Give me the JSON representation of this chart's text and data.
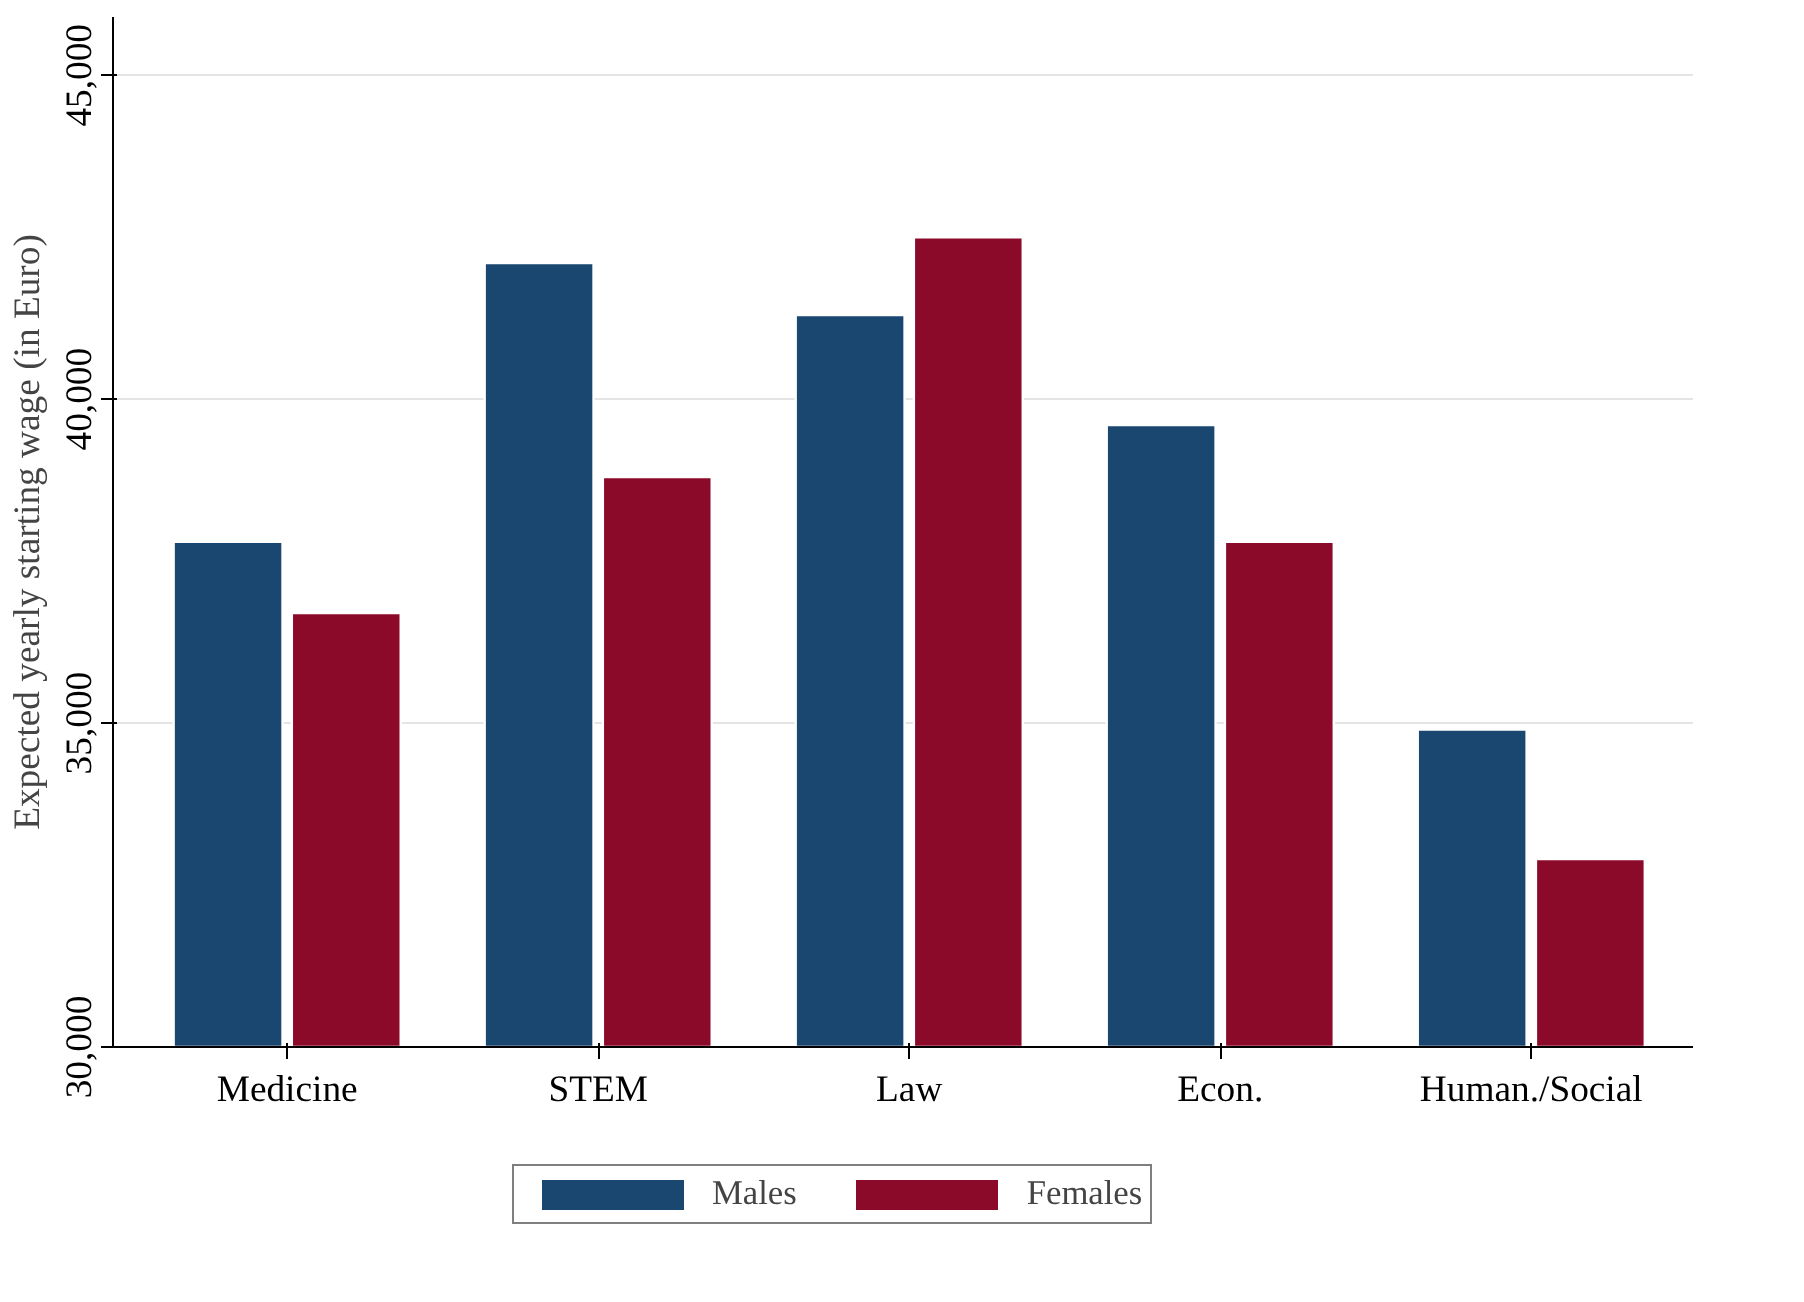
{
  "chart_data": {
    "type": "bar",
    "ylabel": "Expected yearly starting wage (in Euro)",
    "categories": [
      "Medicine",
      "STEM",
      "Law",
      "Econ.",
      "Human./Social"
    ],
    "series": [
      {
        "name": "Males",
        "color": "#1a476f",
        "values": [
          37800,
          42100,
          41300,
          39600,
          34900
        ]
      },
      {
        "name": "Females",
        "color": "#8b0a2a",
        "values": [
          36700,
          38800,
          42500,
          37800,
          32900
        ]
      }
    ],
    "ylim": [
      30000,
      45900
    ],
    "yticks": [
      {
        "value": 30000,
        "label": "30,000"
      },
      {
        "value": 35000,
        "label": "35,000"
      },
      {
        "value": 40000,
        "label": "40,000"
      },
      {
        "value": 45000,
        "label": "45,000"
      }
    ],
    "grid": "y",
    "legend": "bottom"
  }
}
